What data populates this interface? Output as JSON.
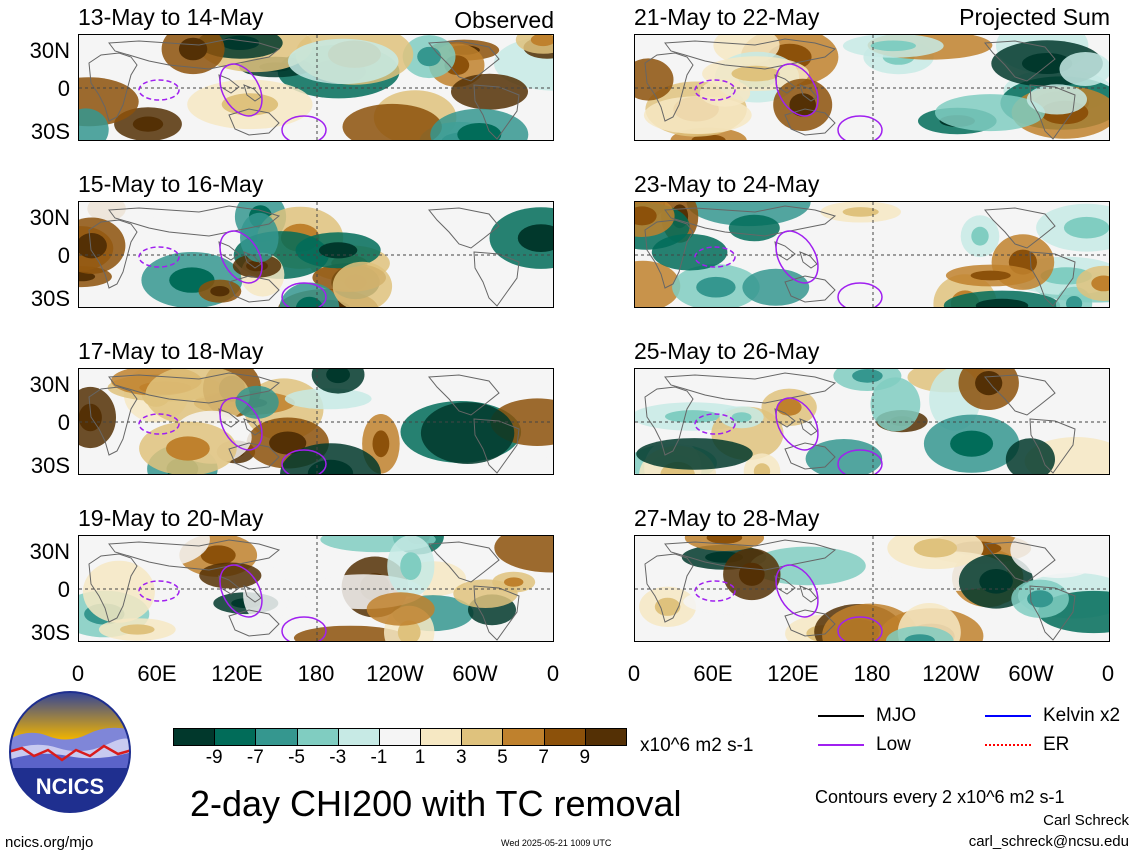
{
  "panels": [
    {
      "label": "13-May to 14-May",
      "tag": "Observed",
      "seed": 1
    },
    {
      "label": "21-May to 22-May",
      "tag": "Projected Sum",
      "seed": 5
    },
    {
      "label": "15-May to 16-May",
      "tag": "",
      "seed": 2
    },
    {
      "label": "23-May to 24-May",
      "tag": "",
      "seed": 6
    },
    {
      "label": "17-May to 18-May",
      "tag": "",
      "seed": 3
    },
    {
      "label": "25-May to 26-May",
      "tag": "",
      "seed": 7
    },
    {
      "label": "19-May to 20-May",
      "tag": "",
      "seed": 4
    },
    {
      "label": "27-May to 28-May",
      "tag": "",
      "seed": 8
    }
  ],
  "lat_ticks": [
    "30N",
    "0",
    "30S"
  ],
  "lon_ticks": [
    "0",
    "60E",
    "120E",
    "180",
    "120W",
    "60W",
    "0"
  ],
  "colorbar": {
    "colors": [
      "#01382c",
      "#016c59",
      "#35978f",
      "#80cdc1",
      "#c7eae5",
      "#f5f5f5",
      "#f6e8c3",
      "#dfc27d",
      "#bf812d",
      "#8c510a",
      "#543005"
    ],
    "ticks": [
      "-9",
      "-7",
      "-5",
      "-3",
      "-1",
      "1",
      "3",
      "5",
      "7",
      "9"
    ],
    "units": "x10^6 m2 s-1"
  },
  "legend": [
    {
      "label": "MJO",
      "color": "#000000"
    },
    {
      "label": "Kelvin x2",
      "color": "#0000ff"
    },
    {
      "label": "Low",
      "color": "#a020f0"
    },
    {
      "label": "ER",
      "color": "#ff0000"
    }
  ],
  "title": "2-day CHI200 with TC removal",
  "contour_note": "Contours every 2 x10^6 m2 s-1",
  "logo_text": "NCICS",
  "site": "ncics.org/mjo",
  "timestamp": "Wed 2025-05-21 1009 UTC",
  "author": "Carl Schreck",
  "email": "carl_schreck@ncsu.edu"
}
